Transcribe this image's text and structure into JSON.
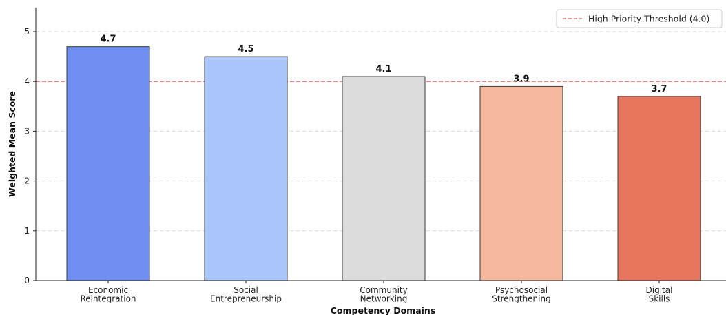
{
  "chart_data": {
    "type": "bar",
    "categories": [
      [
        "Economic",
        "Reintegration"
      ],
      [
        "Social",
        "Entrepreneurship"
      ],
      [
        "Community",
        "Networking"
      ],
      [
        "Psychosocial",
        "Strengthening"
      ],
      [
        "Digital",
        "Skills"
      ]
    ],
    "values": [
      4.7,
      4.5,
      4.1,
      3.9,
      3.7
    ],
    "value_labels": [
      "4.7",
      "4.5",
      "4.1",
      "3.9",
      "3.7"
    ],
    "bar_colors": [
      "#6f8ef2",
      "#aac6fb",
      "#dcdcdc",
      "#f6b89c",
      "#e8765f"
    ],
    "title": "",
    "xlabel": "Competency Domains",
    "ylabel": "Weighted Mean Score",
    "ylim": [
      0,
      5.5
    ],
    "yticks": [
      0,
      1,
      2,
      3,
      4,
      5
    ],
    "grid": "horizontal-dashed",
    "threshold": {
      "value": 4.0,
      "label": "High Priority Threshold (4.0)",
      "color": "#e57373",
      "style": "dashed"
    },
    "legend_position": "top-right"
  }
}
